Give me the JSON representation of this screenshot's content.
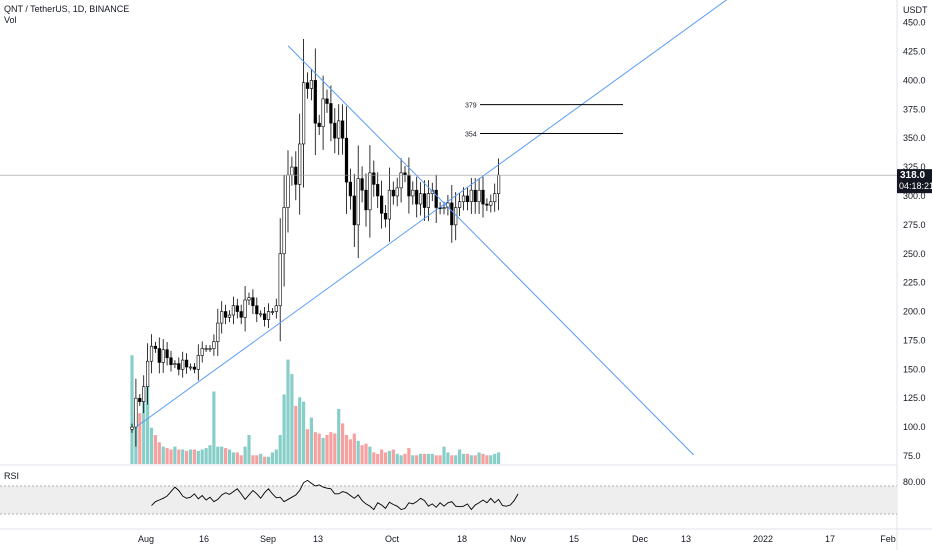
{
  "header": {
    "symbol_line": "QNT / TetherUS, 1D, BINANCE",
    "volume_label": "Vol"
  },
  "price_axis": {
    "currency": "USDT",
    "ticks": [
      "450.0",
      "425.0",
      "400.0",
      "375.0",
      "350.0",
      "325.0",
      "300.0",
      "275.0",
      "250.0",
      "225.0",
      "200.0",
      "175.0",
      "150.0",
      "125.0",
      "100.0",
      "75.0"
    ],
    "last_price": "318.0",
    "countdown": "04:18:21"
  },
  "rsi": {
    "label": "RSI",
    "upper_level": "80.00",
    "band": [
      30,
      80
    ]
  },
  "time_axis": {
    "labels": [
      "Aug",
      "16",
      "Sep",
      "13",
      "Oct",
      "18",
      "Nov",
      "15",
      "Dec",
      "13",
      "2022",
      "17",
      "Feb"
    ]
  },
  "annotations": [
    {
      "text": "379",
      "price": 379
    },
    {
      "text": "354",
      "price": 354
    }
  ],
  "colors": {
    "up": "#26a69a",
    "down": "#ef5350",
    "trendline": "#5b9cf6",
    "candle_outline": "#000000",
    "rsi_line": "#000000",
    "rsi_band": "#eeeeee"
  },
  "chart_data": {
    "type": "candlestick",
    "title": "QNT / TetherUS, 1D, BINANCE",
    "ylabel": "USDT",
    "ylim": [
      65,
      465
    ],
    "close": [
      100,
      125,
      122,
      135,
      157,
      170,
      168,
      156,
      167,
      160,
      154,
      155,
      150,
      158,
      152,
      152,
      150,
      162,
      168,
      168,
      168,
      174,
      190,
      200,
      195,
      197,
      205,
      200,
      195,
      210,
      212,
      205,
      198,
      198,
      193,
      200,
      200,
      205,
      250,
      290,
      318,
      325,
      310,
      345,
      398,
      393,
      400,
      363,
      360,
      384,
      380,
      363,
      350,
      365,
      350,
      312,
      300,
      275,
      315,
      305,
      288,
      320,
      310,
      300,
      285,
      280,
      305,
      300,
      307,
      320,
      318,
      300,
      305,
      293,
      302,
      290,
      302,
      305,
      290,
      289,
      290,
      294,
      275,
      290,
      295,
      300,
      295,
      305,
      295,
      305,
      293,
      292,
      295,
      302,
      318
    ],
    "volume": [
      75,
      36,
      35,
      44,
      55,
      25,
      20,
      15,
      12,
      11,
      10,
      12,
      10,
      10,
      9,
      10,
      10,
      9,
      10,
      11,
      13,
      50,
      12,
      12,
      11,
      10,
      8,
      8,
      6,
      12,
      20,
      6,
      6,
      7,
      5,
      5,
      8,
      10,
      20,
      48,
      72,
      62,
      40,
      46,
      43,
      24,
      32,
      22,
      21,
      18,
      20,
      22,
      21,
      38,
      28,
      20,
      17,
      21,
      16,
      13,
      14,
      12,
      8,
      7,
      10,
      8,
      9,
      10,
      7,
      6,
      7,
      11,
      6,
      6,
      7,
      7,
      7,
      7,
      6,
      6,
      12,
      8,
      6,
      6,
      10,
      7,
      7,
      6,
      6,
      8,
      7,
      6,
      6,
      7,
      8
    ],
    "rsi": [
      45,
      52,
      55,
      58,
      62,
      70,
      78,
      72,
      62,
      58,
      60,
      66,
      57,
      63,
      55,
      60,
      52,
      56,
      64,
      68,
      65,
      70,
      75,
      66,
      56,
      64,
      72,
      66,
      58,
      68,
      75,
      66,
      59,
      60,
      52,
      56,
      60,
      64,
      72,
      86,
      90,
      85,
      80,
      82,
      78,
      76,
      75,
      66,
      66,
      70,
      68,
      63,
      58,
      64,
      54,
      48,
      44,
      38,
      50,
      46,
      40,
      51,
      47,
      44,
      38,
      40,
      50,
      48,
      52,
      58,
      54,
      44,
      48,
      42,
      50,
      44,
      50,
      52,
      44,
      43,
      44,
      48,
      38,
      46,
      50,
      55,
      50,
      58,
      50,
      56,
      45,
      44,
      46,
      54,
      66
    ],
    "trendlines": [
      {
        "from": {
          "bar": 1,
          "price": 100
        },
        "to": {
          "bar": 162,
          "price": 493
        }
      },
      {
        "from": {
          "bar": 40,
          "price": 430
        },
        "to": {
          "bar": 144,
          "price": 76
        }
      }
    ],
    "grid": false
  }
}
